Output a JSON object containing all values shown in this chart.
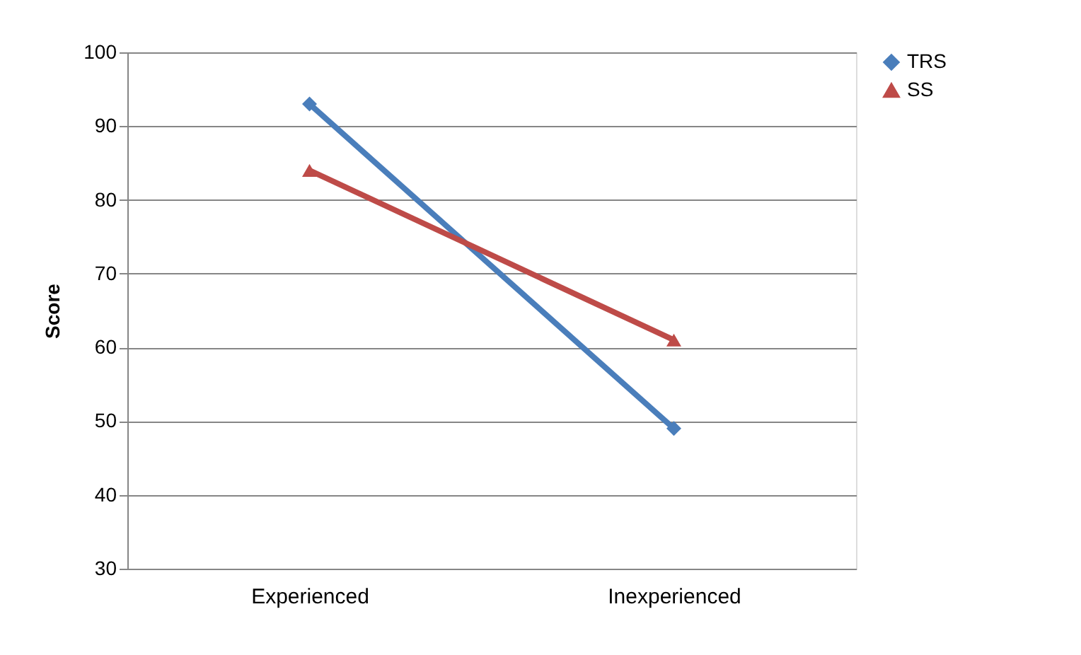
{
  "chart_data": {
    "type": "line",
    "ylabel": "Score",
    "categories": [
      "Experienced",
      "Inexperienced"
    ],
    "series": [
      {
        "name": "TRS",
        "color": "#4a7ebb",
        "marker": "diamond",
        "values": [
          93,
          49
        ]
      },
      {
        "name": "SS",
        "color": "#be4b48",
        "marker": "triangle",
        "values": [
          84,
          61
        ]
      }
    ],
    "ylim": [
      30,
      100
    ],
    "yticks": [
      30,
      40,
      50,
      60,
      70,
      80,
      90,
      100
    ],
    "grid": "y",
    "legend": "right"
  }
}
